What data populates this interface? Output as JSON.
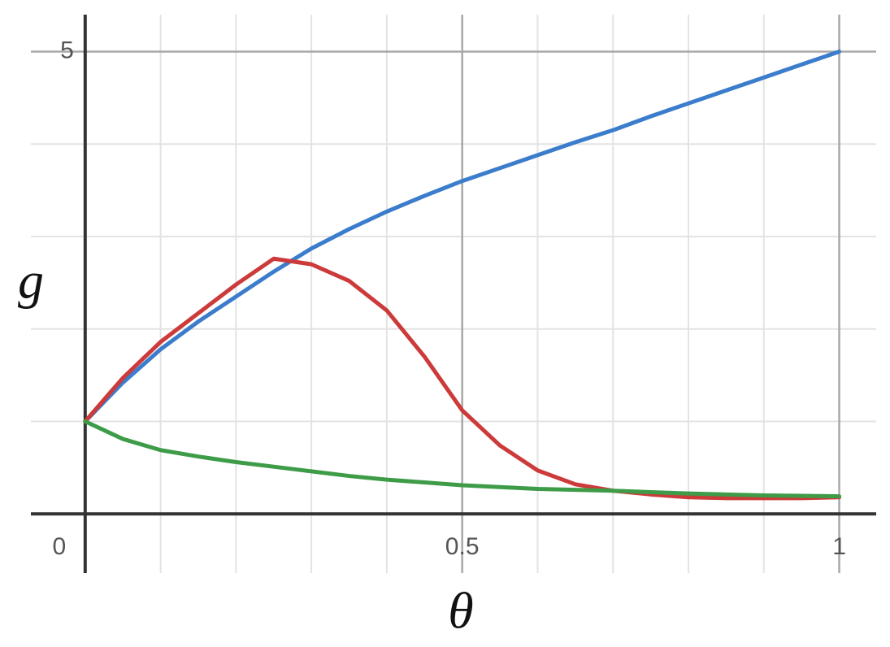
{
  "chart_data": {
    "type": "line",
    "x_label": "θ",
    "y_label": "g",
    "xlim": [
      -0.072,
      1.049
    ],
    "ylim": [
      -0.64,
      5.4
    ],
    "xticks": [
      0,
      0.5,
      1
    ],
    "yticks": [
      5
    ],
    "xgrid": [
      0.1,
      0.2,
      0.3,
      0.4,
      0.6,
      0.7,
      0.8,
      0.9
    ],
    "ygrid": [
      1,
      2,
      3,
      4
    ],
    "grid": true,
    "x": [
      0,
      0.05,
      0.1,
      0.15,
      0.2,
      0.25,
      0.3,
      0.35,
      0.4,
      0.45,
      0.5,
      0.55,
      0.6,
      0.65,
      0.7,
      0.75,
      0.8,
      0.85,
      0.9,
      0.95,
      1
    ],
    "series": [
      {
        "color": "#3b7dcc",
        "values": [
          1,
          1.42,
          1.78,
          2.08,
          2.35,
          2.62,
          2.87,
          3.08,
          3.27,
          3.44,
          3.6,
          3.74,
          3.88,
          4.02,
          4.15,
          4.3,
          4.44,
          4.58,
          4.72,
          4.86,
          5
        ]
      },
      {
        "color": "#cc3a3a",
        "values": [
          1,
          1.47,
          1.86,
          2.17,
          2.48,
          2.76,
          2.7,
          2.52,
          2.2,
          1.7,
          1.12,
          0.74,
          0.47,
          0.32,
          0.25,
          0.21,
          0.18,
          0.17,
          0.17,
          0.17,
          0.18
        ]
      },
      {
        "color": "#3e9c49",
        "values": [
          1,
          0.81,
          0.69,
          0.62,
          0.56,
          0.51,
          0.46,
          0.41,
          0.37,
          0.34,
          0.31,
          0.29,
          0.27,
          0.26,
          0.25,
          0.235,
          0.22,
          0.21,
          0.2,
          0.195,
          0.19
        ]
      }
    ]
  }
}
